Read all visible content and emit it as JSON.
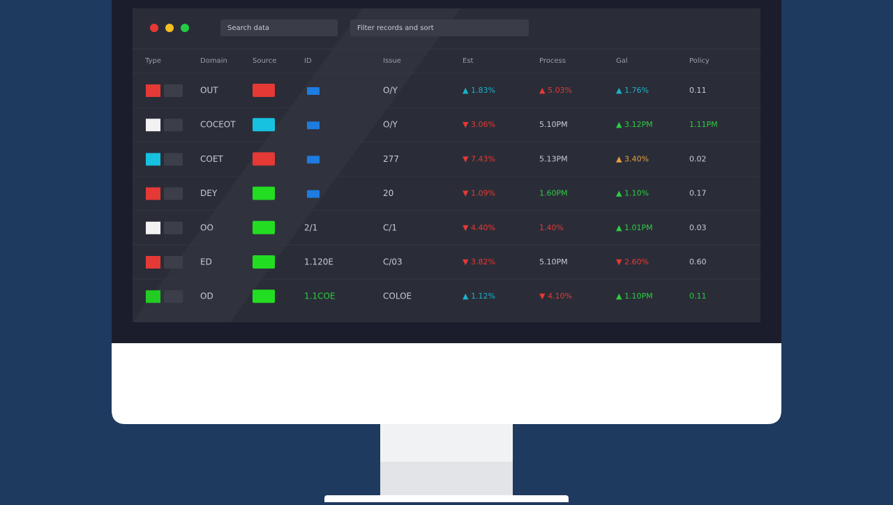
{
  "toolbar": {
    "search": "Search data",
    "filter": "Filter records and sort"
  },
  "table": {
    "columns": [
      "Type",
      "Domain",
      "Source",
      "ID",
      "Issue",
      "Est",
      "Process",
      "Gal",
      "Policy"
    ],
    "rows": [
      {
        "swatch": "#e53935",
        "code": "OUT",
        "tag": "#e53935",
        "ref": null,
        "qty": "O/Y",
        "cells": [
          {
            "text": "▲ 1.83%",
            "color": "#19b3c9"
          },
          {
            "text": "▲ 5.03%",
            "color": "#e53935"
          },
          {
            "text": "▲ 1.76%",
            "color": "#19b3c9"
          },
          {
            "text": "0.11",
            "color": "#c9ccd4"
          }
        ]
      },
      {
        "swatch": "#f2f2f2",
        "code": "COCEOT",
        "tag": "#17c1e0",
        "ref": null,
        "qty": "O/Y",
        "cells": [
          {
            "text": "▼ 3.06%",
            "color": "#e53935"
          },
          {
            "text": "5.10PM",
            "color": "#c9ccd4"
          },
          {
            "text": "▲ 3.12PM",
            "color": "#2ecc40"
          },
          {
            "text": "1.11PM",
            "color": "#2ecc40"
          }
        ]
      },
      {
        "swatch": "#17c1e0",
        "code": "COET",
        "tag": "#e53935",
        "ref": null,
        "qty": "277",
        "cells": [
          {
            "text": "▼ 7.43%",
            "color": "#e53935"
          },
          {
            "text": "5.13PM",
            "color": "#c9ccd4"
          },
          {
            "text": "▲ 3.40%",
            "color": "#e0a040"
          },
          {
            "text": "0.02",
            "color": "#c9ccd4"
          }
        ]
      },
      {
        "swatch": "#e53935",
        "code": "DEY",
        "tag": "#22dd22",
        "ref": null,
        "qty": "20",
        "cells": [
          {
            "text": "▼ 1.09%",
            "color": "#e53935"
          },
          {
            "text": "1.60PM",
            "color": "#2ecc40"
          },
          {
            "text": "▲ 1.10%",
            "color": "#2ecc40"
          },
          {
            "text": "0.17",
            "color": "#c9ccd4"
          }
        ]
      },
      {
        "swatch": "#f2f2f2",
        "code": "OO",
        "tag": "#22dd22",
        "ref": "2/1",
        "qty": "C/1",
        "cells": [
          {
            "text": "▼ 4.40%",
            "color": "#e53935"
          },
          {
            "text": "1.40%",
            "color": "#e53935"
          },
          {
            "text": "▲ 1.01PM",
            "color": "#2ecc40"
          },
          {
            "text": "0.03",
            "color": "#c9ccd4"
          }
        ]
      },
      {
        "swatch": "#e53935",
        "code": "ED",
        "tag": "#22dd22",
        "ref": "1.120E",
        "qty": "C/03",
        "cells": [
          {
            "text": "▼ 3.82%",
            "color": "#e53935"
          },
          {
            "text": "5.10PM",
            "color": "#c9ccd4"
          },
          {
            "text": "▼ 2.60%",
            "color": "#e53935"
          },
          {
            "text": "0.60",
            "color": "#c9ccd4"
          }
        ]
      },
      {
        "swatch": "#22cc22",
        "code": "OD",
        "tag": "#22dd22",
        "ref": "1.1COE",
        "qty": "COLOE",
        "cells": [
          {
            "text": "▲ 1.12%",
            "color": "#19b3c9"
          },
          {
            "text": "▼ 4.10%",
            "color": "#e53935"
          },
          {
            "text": "▲ 1.10PM",
            "color": "#2ecc40"
          },
          {
            "text": "0.11",
            "color": "#2ecc40"
          }
        ]
      }
    ]
  }
}
